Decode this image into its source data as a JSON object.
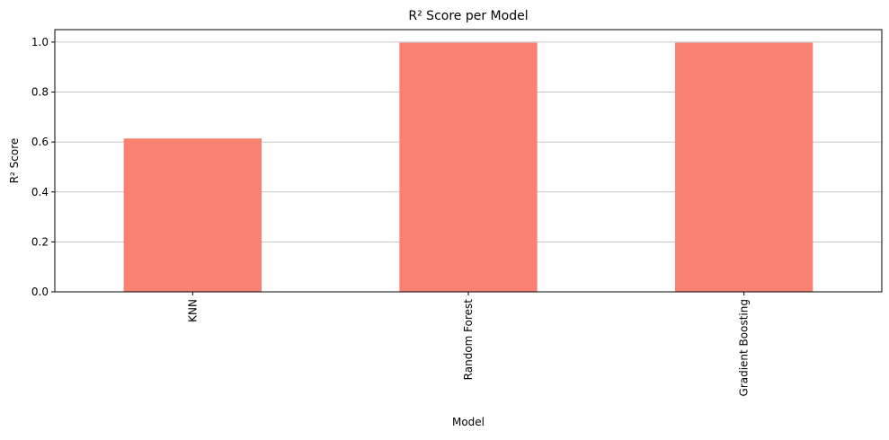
{
  "chart_data": {
    "type": "bar",
    "title": "R² Score per Model",
    "xlabel": "Model",
    "ylabel": "R² Score",
    "categories": [
      "KNN",
      "Random Forest",
      "Gradient Boosting"
    ],
    "values": [
      0.614,
      0.998,
      0.998
    ],
    "ylim": [
      0,
      1.05
    ],
    "yticks": [
      "0.0",
      "0.2",
      "0.4",
      "0.6",
      "0.8",
      "1.0"
    ],
    "grid": "y",
    "legend": "none",
    "bar_color": "#fa8072",
    "grid_color": "#b0b0b0"
  }
}
